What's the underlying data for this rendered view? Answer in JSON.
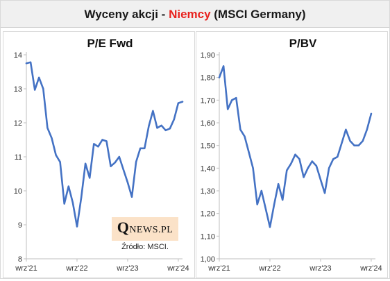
{
  "header": {
    "title_prefix": "Wyceny akcji - ",
    "title_accent": "Niemcy",
    "title_suffix": " (MSCI Germany)",
    "accent_color": "#e8231f"
  },
  "logo": {
    "letter": "Q",
    "rest": "NEWS.PL"
  },
  "source": "Źródło: MSCI.",
  "chart_data": [
    {
      "type": "line",
      "title": "P/E Fwd",
      "color": "#4472c4",
      "xlabel": "",
      "ylabel": "",
      "ylim": [
        8,
        14
      ],
      "yticks": [
        8,
        9,
        10,
        11,
        12,
        13,
        14
      ],
      "ytick_labels": [
        "8",
        "9",
        "10",
        "11",
        "12",
        "13",
        "14"
      ],
      "xlim": [
        0,
        37
      ],
      "xticks": [
        0,
        12,
        24,
        36
      ],
      "xtick_labels": [
        "wrz'21",
        "wrz'22",
        "wrz'23",
        "wrz'24"
      ],
      "grid": false,
      "series": [
        {
          "x": [
            0,
            1,
            2,
            3,
            4,
            5,
            6,
            7,
            8,
            9,
            10,
            11,
            12,
            13,
            14,
            15,
            16,
            17,
            18,
            19,
            20,
            21,
            22,
            23,
            24,
            25,
            26,
            27,
            28,
            29,
            30,
            31,
            32,
            33,
            34,
            35,
            36,
            37
          ],
          "values": [
            13.75,
            13.78,
            12.97,
            13.33,
            13.0,
            11.85,
            11.55,
            11.05,
            10.85,
            9.62,
            10.13,
            9.65,
            8.95,
            9.8,
            10.8,
            10.38,
            11.38,
            11.3,
            11.5,
            11.46,
            10.72,
            10.83,
            11.0,
            10.62,
            10.25,
            9.82,
            10.85,
            11.25,
            11.25,
            11.9,
            12.35,
            11.85,
            11.92,
            11.78,
            11.83,
            12.1,
            12.58,
            12.62
          ]
        }
      ]
    },
    {
      "type": "line",
      "title": "P/BV",
      "color": "#4472c4",
      "xlabel": "",
      "ylabel": "",
      "ylim": [
        1.0,
        1.9
      ],
      "yticks": [
        1.0,
        1.1,
        1.2,
        1.3,
        1.4,
        1.5,
        1.6,
        1.7,
        1.8,
        1.9
      ],
      "ytick_labels": [
        "1,00",
        "1,10",
        "1,20",
        "1,30",
        "1,40",
        "1,50",
        "1,60",
        "1,70",
        "1,80",
        "1,90"
      ],
      "xlim": [
        0,
        37
      ],
      "xticks": [
        0,
        12,
        24,
        36
      ],
      "xtick_labels": [
        "wrz'21",
        "wrz'22",
        "wrz'23",
        "wrz'24"
      ],
      "grid": false,
      "series": [
        {
          "x": [
            0,
            1,
            2,
            3,
            4,
            5,
            6,
            7,
            8,
            9,
            10,
            11,
            12,
            13,
            14,
            15,
            16,
            17,
            18,
            19,
            20,
            21,
            22,
            23,
            24,
            25,
            26,
            27,
            28,
            29,
            30,
            31,
            32,
            33,
            34,
            35,
            36
          ],
          "values": [
            1.8,
            1.85,
            1.66,
            1.7,
            1.71,
            1.57,
            1.54,
            1.47,
            1.4,
            1.24,
            1.3,
            1.22,
            1.14,
            1.24,
            1.33,
            1.26,
            1.39,
            1.42,
            1.46,
            1.44,
            1.36,
            1.4,
            1.43,
            1.41,
            1.35,
            1.29,
            1.4,
            1.44,
            1.45,
            1.51,
            1.57,
            1.52,
            1.5,
            1.5,
            1.52,
            1.57,
            1.64
          ]
        }
      ]
    }
  ]
}
